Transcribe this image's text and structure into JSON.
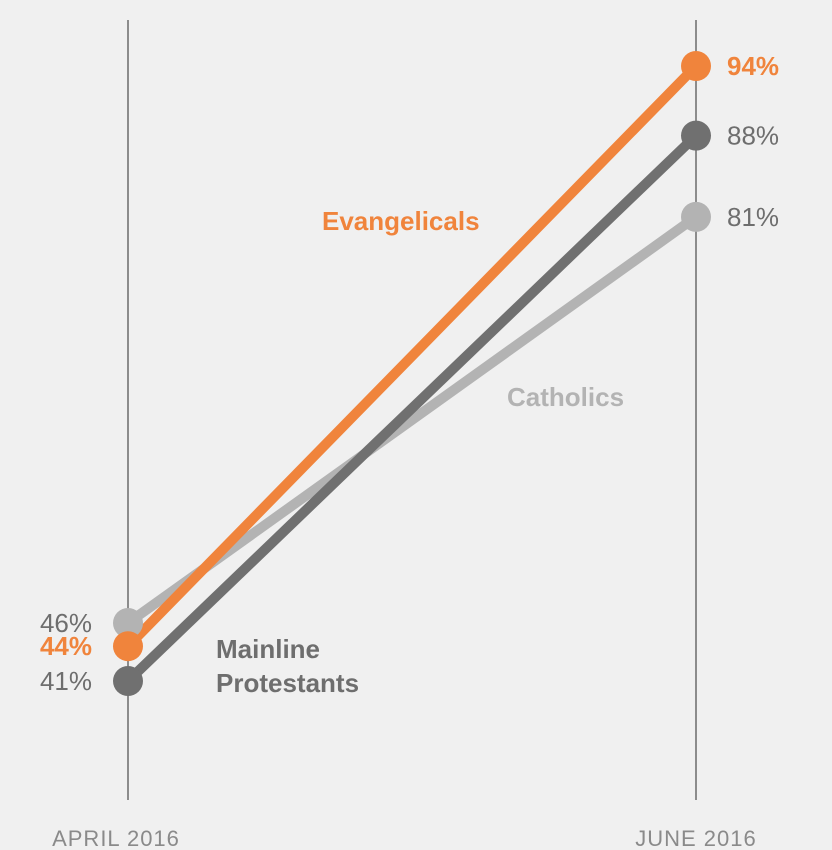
{
  "chart_data": {
    "type": "line",
    "x": [
      "APRIL 2016",
      "JUNE 2016"
    ],
    "ylim": [
      30,
      100
    ],
    "grid": false,
    "series": [
      {
        "name": "Catholics",
        "values": [
          46,
          81
        ],
        "labels": [
          "46%",
          "81%"
        ],
        "color": "#b3b3b3",
        "label_color": "#b3b3b3",
        "value_color": "#6e6e6e",
        "bold_values": false
      },
      {
        "name": "Mainline Protestants",
        "name_lines": [
          "Mainline",
          "Protestants"
        ],
        "values": [
          41,
          88
        ],
        "labels": [
          "41%",
          "88%"
        ],
        "color": "#707070",
        "label_color": "#6e6e6e",
        "value_color": "#6e6e6e",
        "bold_values": false
      },
      {
        "name": "Evangelicals",
        "values": [
          44,
          94
        ],
        "labels": [
          "44%",
          "94%"
        ],
        "color": "#f0843c",
        "label_color": "#f0843c",
        "value_color": "#f0843c",
        "bold_values": true
      }
    ]
  }
}
